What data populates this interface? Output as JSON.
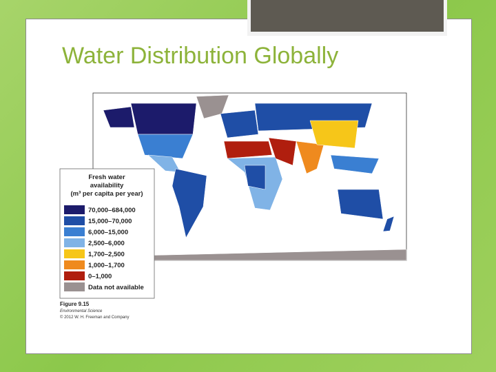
{
  "title": "Water Distribution Globally",
  "legend": {
    "title_lines": [
      "Fresh water",
      "availability",
      "(m³ per capita per year)"
    ],
    "items": [
      {
        "label": "70,000–684,000",
        "color": "#1c1b6b"
      },
      {
        "label": "15,000–70,000",
        "color": "#1f4ea6"
      },
      {
        "label": "6,000–15,000",
        "color": "#3a7fd2"
      },
      {
        "label": "2,500–6,000",
        "color": "#80b3e6"
      },
      {
        "label": "1,700–2,500",
        "color": "#f6c619"
      },
      {
        "label": "1,000–1,700",
        "color": "#ef8a1e"
      },
      {
        "label": "0–1,000",
        "color": "#b01e0e"
      },
      {
        "label": "Data not available",
        "color": "#9a9191"
      }
    ]
  },
  "caption": {
    "figure": "Figure 9.15",
    "book": "Environmental Science",
    "credit": "© 2012 W. H. Freeman and Company"
  }
}
